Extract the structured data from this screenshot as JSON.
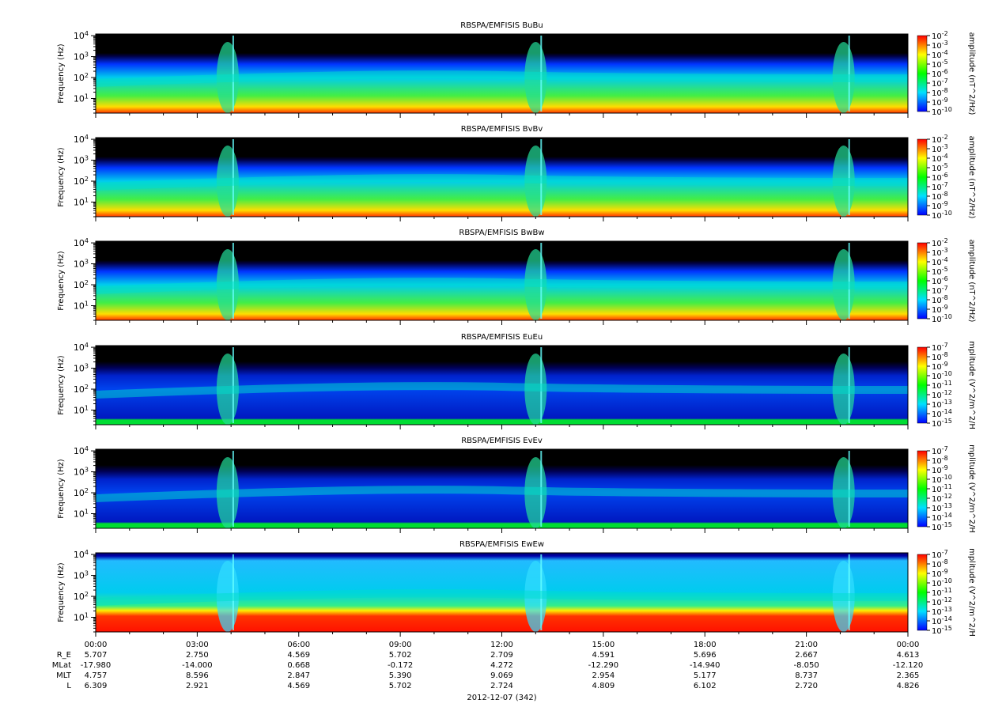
{
  "chart_data": {
    "type": "heatmap",
    "panels": [
      {
        "title": "RBSPA/EMFISIS  BuBu",
        "ylabel": "Frequency (Hz)",
        "cbar_label": "amplitude (nT^2/Hz)",
        "cbar_ticks": [
          "10^-10",
          "10^-9",
          "10^-8",
          "10^-7",
          "10^-6",
          "10^-5",
          "10^-4",
          "10^-3",
          "10^-2"
        ],
        "cbar_range": [
          -10,
          -2
        ]
      },
      {
        "title": "RBSPA/EMFISIS  BvBv",
        "ylabel": "Frequency (Hz)",
        "cbar_label": "amplitude (nT^2/Hz)",
        "cbar_ticks": [
          "10^-10",
          "10^-9",
          "10^-8",
          "10^-7",
          "10^-6",
          "10^-5",
          "10^-4",
          "10^-3",
          "10^-2"
        ],
        "cbar_range": [
          -10,
          -2
        ]
      },
      {
        "title": "RBSPA/EMFISIS  BwBw",
        "ylabel": "Frequency (Hz)",
        "cbar_label": "amplitude (nT^2/Hz)",
        "cbar_ticks": [
          "10^-10",
          "10^-9",
          "10^-8",
          "10^-7",
          "10^-6",
          "10^-5",
          "10^-4",
          "10^-3",
          "10^-2"
        ],
        "cbar_range": [
          -10,
          -2
        ]
      },
      {
        "title": "RBSPA/EMFISIS  EuEu",
        "ylabel": "Frequency (Hz)",
        "cbar_label": "mplitude (V^2/m^2/H",
        "cbar_ticks": [
          "10^-15",
          "10^-14",
          "10^-13",
          "10^-12",
          "10^-11",
          "10^-10",
          "10^-9",
          "10^-8",
          "10^-7"
        ],
        "cbar_range": [
          -15,
          -7
        ]
      },
      {
        "title": "RBSPA/EMFISIS  EvEv",
        "ylabel": "Frequency (Hz)",
        "cbar_label": "mplitude (V^2/m^2/H",
        "cbar_ticks": [
          "10^-15",
          "10^-14",
          "10^-13",
          "10^-12",
          "10^-11",
          "10^-10",
          "10^-9",
          "10^-8",
          "10^-7"
        ],
        "cbar_range": [
          -15,
          -7
        ]
      },
      {
        "title": "RBSPA/EMFISIS  EwEw",
        "ylabel": "Frequency (Hz)",
        "cbar_label": "mplitude (V^2/m^2/H",
        "cbar_ticks": [
          "10^-15",
          "10^-14",
          "10^-13",
          "10^-12",
          "10^-11",
          "10^-10",
          "10^-9",
          "10^-8",
          "10^-7"
        ],
        "cbar_range": [
          -15,
          -7
        ]
      }
    ],
    "yaxis": {
      "scale": "log",
      "ylim": [
        2,
        12000
      ],
      "ticks": [
        10,
        100,
        1000,
        10000
      ],
      "tick_labels": [
        "10^1",
        "10^2",
        "10^3",
        "10^4"
      ]
    },
    "xaxis": {
      "ticks": [
        "00:00",
        "03:00",
        "06:00",
        "09:00",
        "12:00",
        "15:00",
        "18:00",
        "21:00",
        "00:00"
      ],
      "date_label": "2012-12-07 (342)",
      "range_hours": [
        0,
        24
      ]
    },
    "ephemeris": [
      {
        "label": "R_E",
        "values": [
          "5.707",
          "2.750",
          "4.569",
          "5.702",
          "2.709",
          "4.591",
          "5.696",
          "2.667",
          "4.613"
        ]
      },
      {
        "label": "MLat",
        "values": [
          "-17.980",
          "-14.000",
          "0.668",
          "-0.172",
          "4.272",
          "-12.290",
          "-14.940",
          "-8.050",
          "-12.120"
        ]
      },
      {
        "label": "MLT",
        "values": [
          "4.757",
          "8.596",
          "2.847",
          "5.390",
          "9.069",
          "2.954",
          "5.177",
          "8.737",
          "2.365"
        ]
      },
      {
        "label": "L",
        "values": [
          "6.309",
          "2.921",
          "4.569",
          "5.702",
          "2.724",
          "4.809",
          "6.102",
          "2.720",
          "4.826"
        ]
      }
    ],
    "perigee_hours": [
      3.9,
      13.0,
      22.1
    ],
    "colormap": [
      "#0000ff",
      "#00e0ff",
      "#00ff00",
      "#ffff00",
      "#ff0000"
    ]
  }
}
